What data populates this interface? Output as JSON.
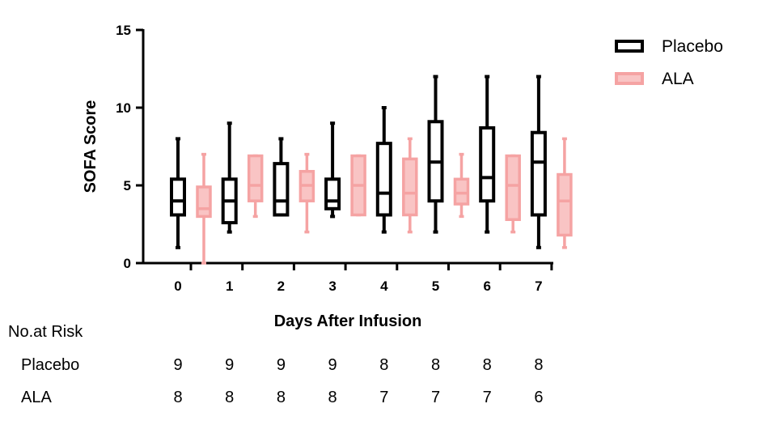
{
  "chart_data": {
    "type": "box",
    "ylabel": "SOFA Score",
    "xlabel": "Days After Infusion",
    "categories": [
      "0",
      "1",
      "2",
      "3",
      "4",
      "5",
      "6",
      "7"
    ],
    "ylim": [
      0,
      15
    ],
    "yticks": [
      "0",
      "5",
      "10",
      "15"
    ],
    "legend_position": "top-right",
    "series": [
      {
        "name": "Placebo",
        "color": "#000000",
        "fill": "none",
        "boxes": [
          {
            "min": 1,
            "q1": 3.1,
            "median": 4,
            "q3": 5.4,
            "max": 8
          },
          {
            "min": 2,
            "q1": 2.6,
            "median": 4,
            "q3": 5.4,
            "max": 9
          },
          {
            "min": 3.1,
            "q1": 3.1,
            "median": 4,
            "q3": 6.4,
            "max": 8
          },
          {
            "min": 3,
            "q1": 3.5,
            "median": 4,
            "q3": 5.4,
            "max": 9
          },
          {
            "min": 2,
            "q1": 3.1,
            "median": 4.5,
            "q3": 7.7,
            "max": 10
          },
          {
            "min": 2,
            "q1": 4,
            "median": 6.5,
            "q3": 9.1,
            "max": 12
          },
          {
            "min": 2,
            "q1": 4,
            "median": 5.5,
            "q3": 8.7,
            "max": 12
          },
          {
            "min": 1,
            "q1": 3.1,
            "median": 6.5,
            "q3": 8.4,
            "max": 12
          }
        ]
      },
      {
        "name": "ALA",
        "color": "#F5A3A3",
        "fill": "#F9C4C4",
        "boxes": [
          {
            "min": 0,
            "q1": 3,
            "median": 3.5,
            "q3": 4.9,
            "max": 7
          },
          {
            "min": 3,
            "q1": 4,
            "median": 5,
            "q3": 6.9,
            "max": 6.9
          },
          {
            "min": 2,
            "q1": 4,
            "median": 5,
            "q3": 5.9,
            "max": 7
          },
          {
            "min": 3.1,
            "q1": 3.1,
            "median": 5,
            "q3": 6.9,
            "max": 6.9
          },
          {
            "min": 2,
            "q1": 3.1,
            "median": 4.5,
            "q3": 6.7,
            "max": 8
          },
          {
            "min": 3,
            "q1": 3.8,
            "median": 4.5,
            "q3": 5.4,
            "max": 7
          },
          {
            "min": 2,
            "q1": 2.8,
            "median": 5,
            "q3": 6.9,
            "max": 6.9
          },
          {
            "min": 1,
            "q1": 1.8,
            "median": 4,
            "q3": 5.7,
            "max": 8
          }
        ]
      }
    ]
  },
  "risk_table": {
    "title": "No.at Risk",
    "rows": [
      {
        "label": "Placebo",
        "values": [
          "9",
          "9",
          "9",
          "9",
          "8",
          "8",
          "8",
          "8"
        ]
      },
      {
        "label": "ALA",
        "values": [
          "8",
          "8",
          "8",
          "8",
          "7",
          "7",
          "7",
          "6"
        ]
      }
    ]
  }
}
